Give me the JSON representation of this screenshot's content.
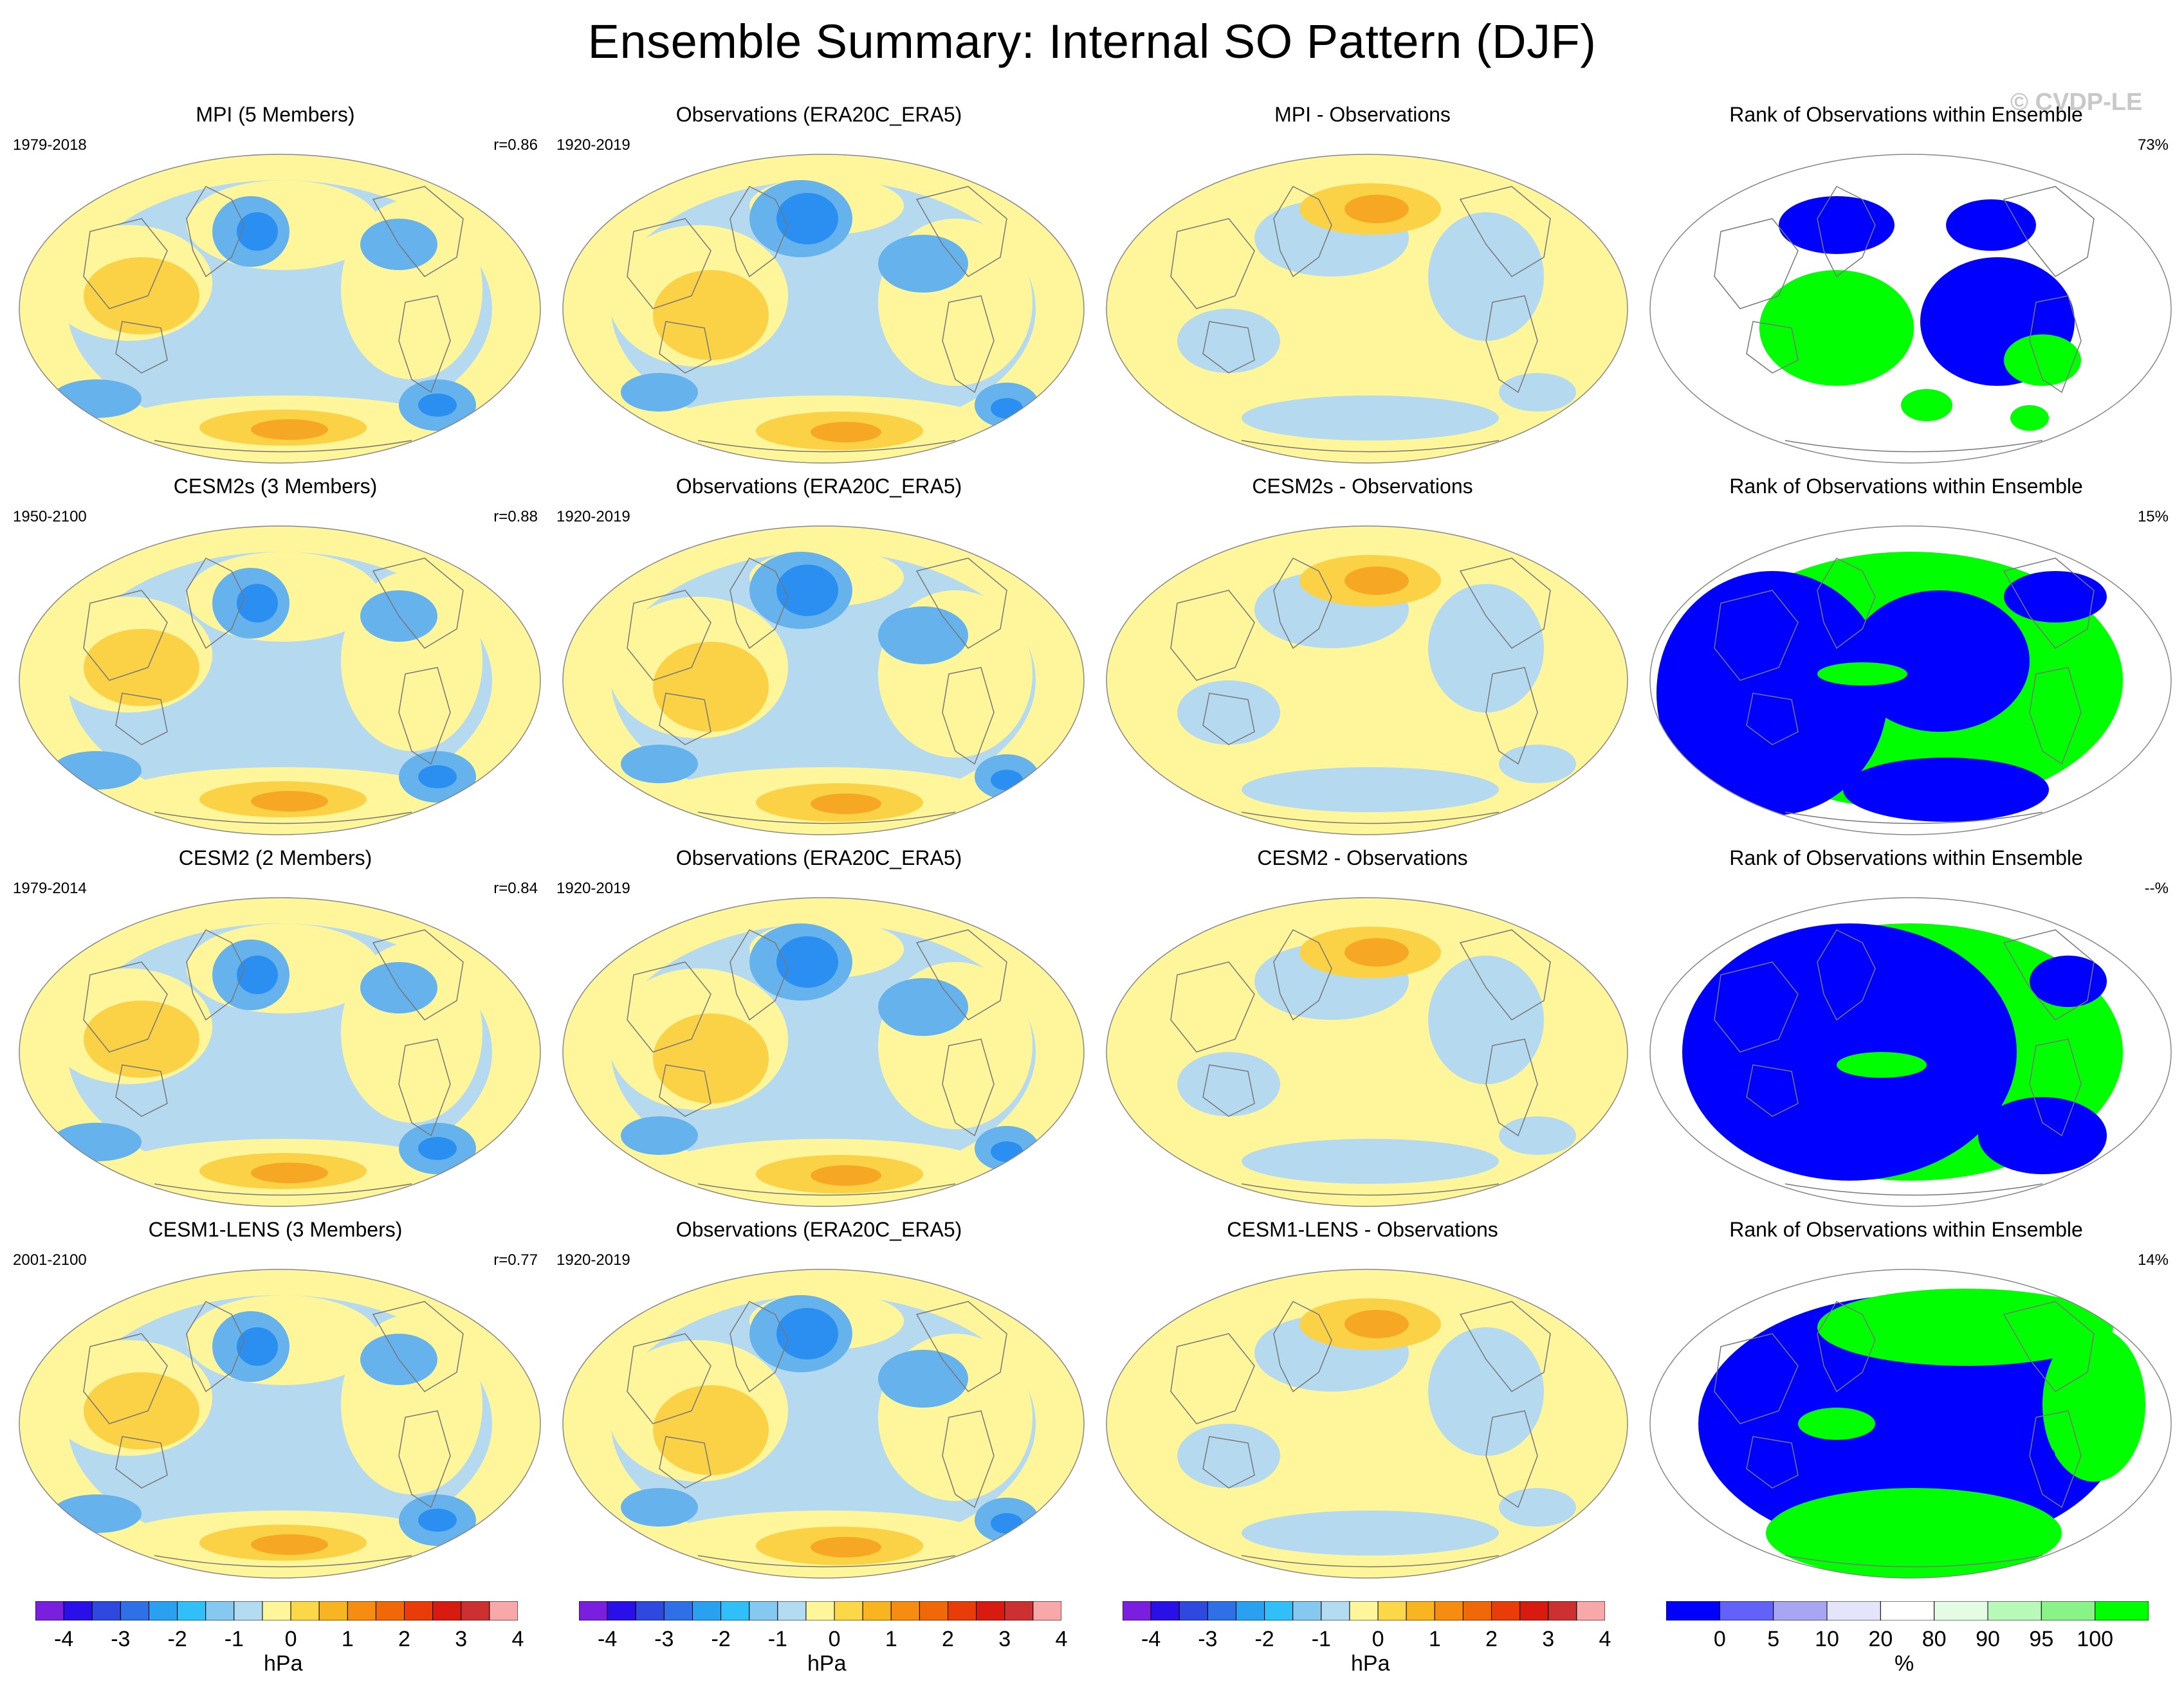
{
  "title": "Ensemble Summary: Internal SO Pattern (DJF)",
  "watermark": "© CVDP-LE",
  "rows": [
    {
      "model": {
        "title": "MPI (5 Members)",
        "period": "1979-2018",
        "corr": "r=0.86"
      },
      "obs": {
        "title": "Observations (ERA20C_ERA5)",
        "period": "1920-2019"
      },
      "diff": {
        "title": "MPI - Observations"
      },
      "rank": {
        "title": "Rank of Observations within Ensemble",
        "pct": "73%"
      }
    },
    {
      "model": {
        "title": "CESM2s (3 Members)",
        "period": "1950-2100",
        "corr": "r=0.88"
      },
      "obs": {
        "title": "Observations (ERA20C_ERA5)",
        "period": "1920-2019"
      },
      "diff": {
        "title": "CESM2s - Observations"
      },
      "rank": {
        "title": "Rank of Observations within Ensemble",
        "pct": "15%"
      }
    },
    {
      "model": {
        "title": "CESM2 (2 Members)",
        "period": "1979-2014",
        "corr": "r=0.84"
      },
      "obs": {
        "title": "Observations (ERA20C_ERA5)",
        "period": "1920-2019"
      },
      "diff": {
        "title": "CESM2 - Observations"
      },
      "rank": {
        "title": "Rank of Observations within Ensemble",
        "pct": "--%"
      }
    },
    {
      "model": {
        "title": "CESM1-LENS (3 Members)",
        "period": "2001-2100",
        "corr": "r=0.77"
      },
      "obs": {
        "title": "Observations (ERA20C_ERA5)",
        "period": "1920-2019"
      },
      "diff": {
        "title": "CESM1-LENS - Observations"
      },
      "rank": {
        "title": "Rank of Observations within Ensemble",
        "pct": "14%"
      }
    }
  ],
  "colorbar_hpa": {
    "unit": "hPa",
    "ticks": [
      "-4",
      "-3",
      "-2",
      "-1",
      "0",
      "1",
      "2",
      "3",
      "4"
    ],
    "colors": [
      "#7a1fe0",
      "#2a10e8",
      "#2e48e0",
      "#2f6fe8",
      "#2aa0f0",
      "#30bff8",
      "#85c8f0",
      "#b3dcf2",
      "#fff59a",
      "#fcd848",
      "#f9b520",
      "#f78d10",
      "#f06808",
      "#ea3c08",
      "#d81a10",
      "#cc3030",
      "#f8a8a8"
    ]
  },
  "colorbar_rank": {
    "unit": "%",
    "ticks": [
      "0",
      "5",
      "10",
      "20",
      "80",
      "90",
      "95",
      "100"
    ],
    "colors": [
      "#0000ff",
      "#6262f8",
      "#a6a6f2",
      "#e4e4fa",
      "#ffffff",
      "#e4fce4",
      "#b8f8b8",
      "#88f488",
      "#00ff00"
    ]
  },
  "map_palette": {
    "strong_neg": "#2a8ff0",
    "mid_neg": "#65b2ec",
    "weak_neg": "#b5daf0",
    "weak_pos": "#fff59a",
    "mid_pos": "#fbd246",
    "strong_pos": "#f6a824",
    "max_pos": "#ef7a10",
    "land": "#777777",
    "rank_low": "#0000ff",
    "rank_high": "#00ff00"
  }
}
